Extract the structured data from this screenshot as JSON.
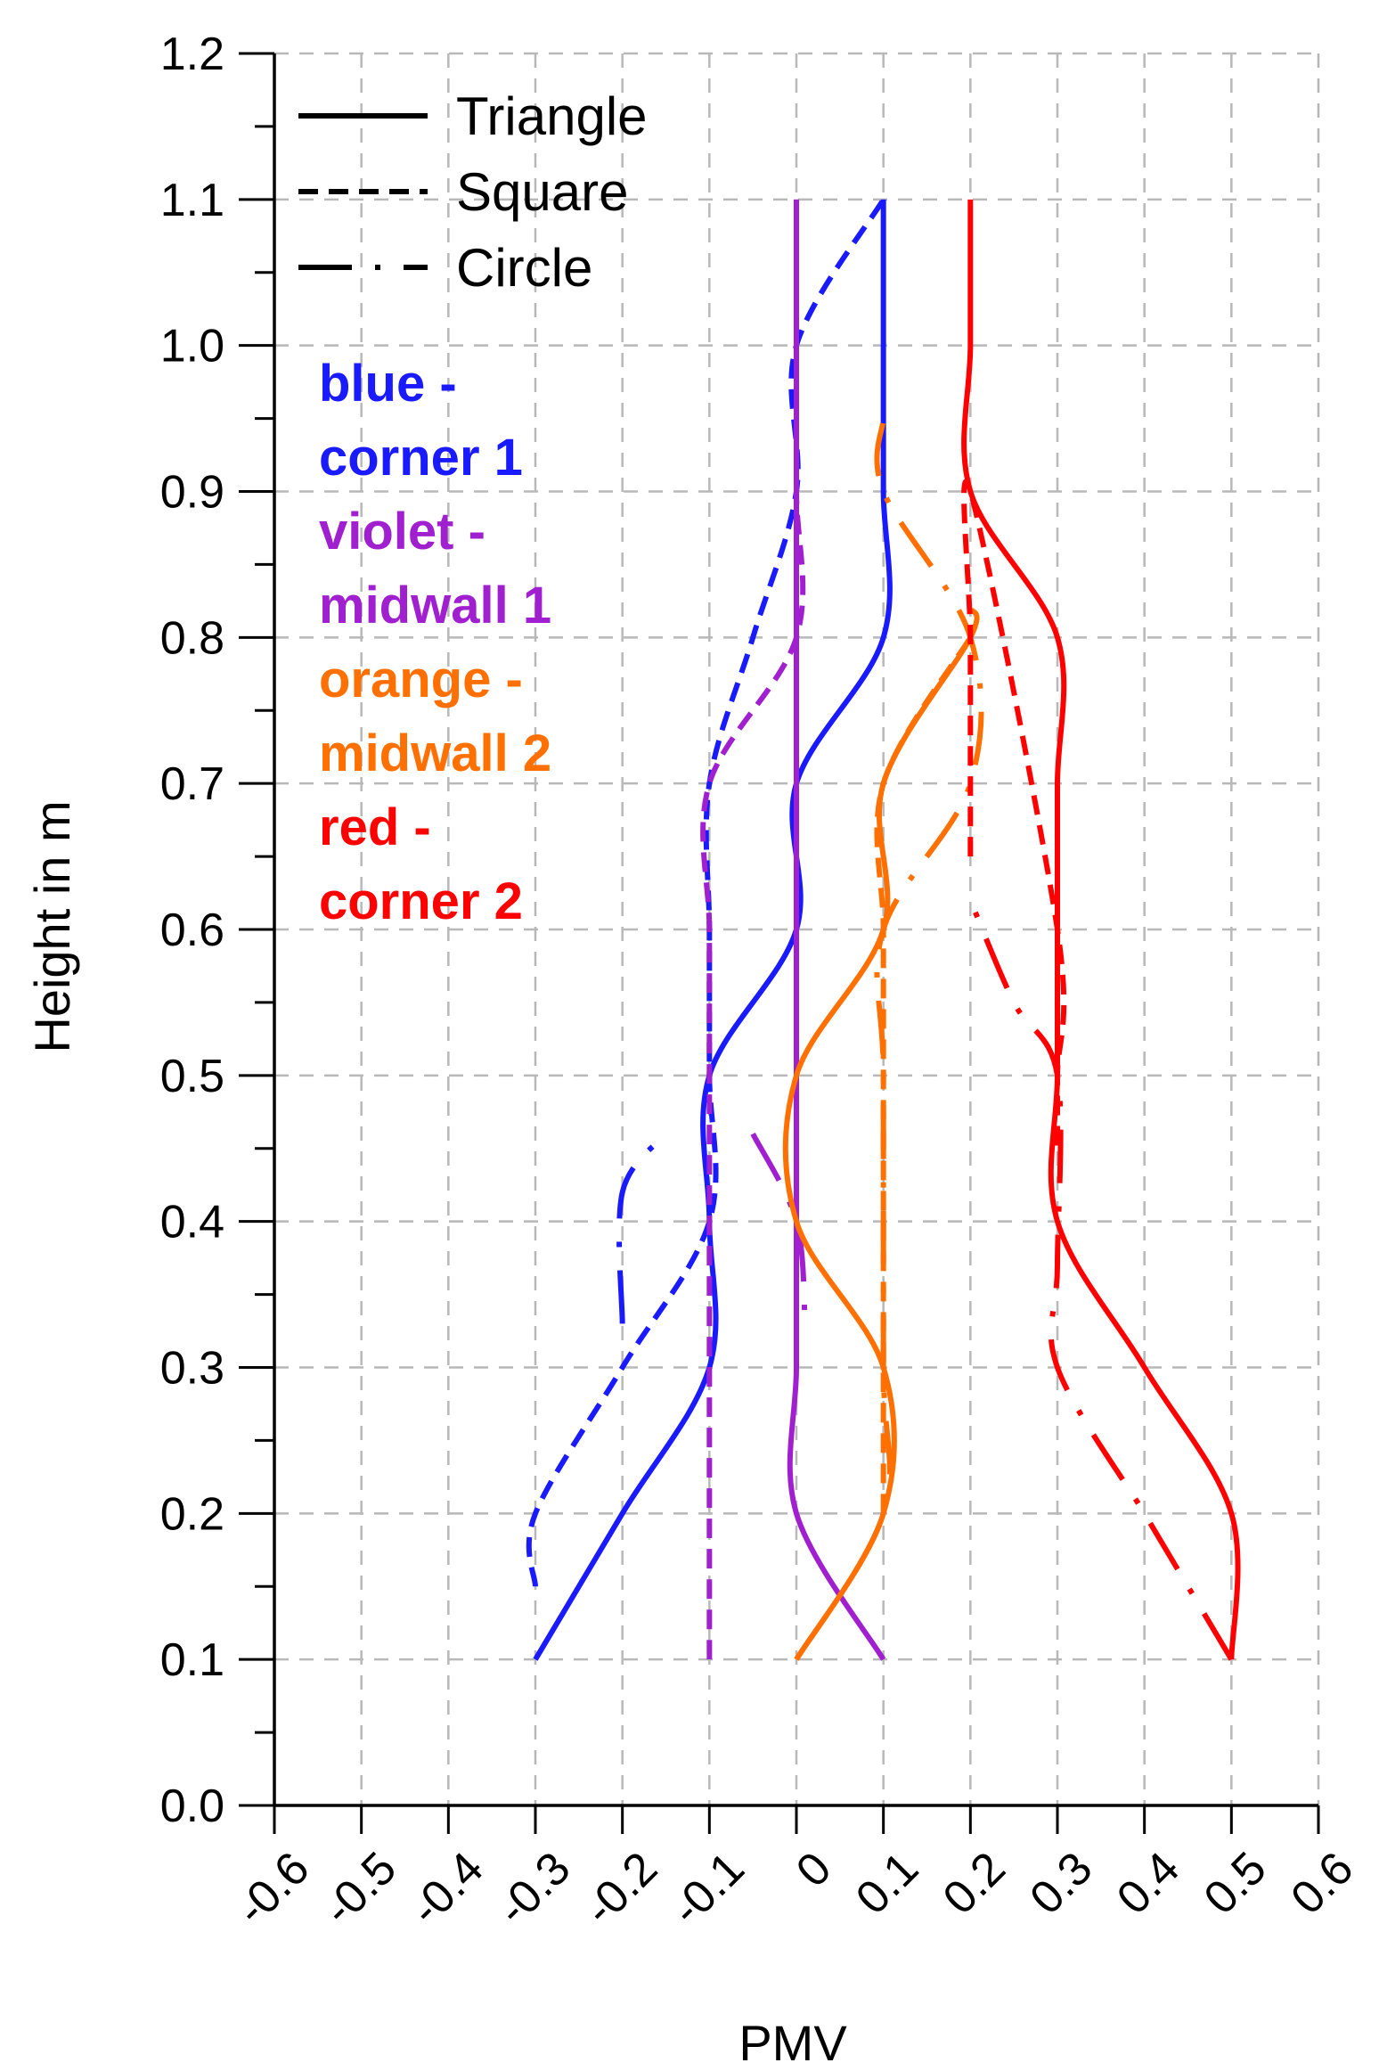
{
  "chart_data": {
    "type": "line",
    "xlabel": "PMV",
    "ylabel": "Height in m",
    "xlim": [
      -0.6,
      0.6
    ],
    "ylim": [
      0.0,
      1.2
    ],
    "grid": true,
    "x_ticks": [
      "-0.6",
      "-0.5",
      "-0.4",
      "-0.3",
      "-0.2",
      "-0.1",
      "0",
      "0.1",
      "0.2",
      "0.3",
      "0.4",
      "0.5",
      "0.6"
    ],
    "y_ticks": [
      "0.0",
      "0.1",
      "0.2",
      "0.3",
      "0.4",
      "0.5",
      "0.6",
      "0.7",
      "0.8",
      "0.9",
      "1.0",
      "1.1",
      "1.2"
    ],
    "legend": {
      "position": "top-left",
      "entries": [
        {
          "label": "Triangle",
          "style": "solid"
        },
        {
          "label": "Square",
          "style": "dashed"
        },
        {
          "label": "Circle",
          "style": "dash-dot"
        }
      ]
    },
    "color_notes": [
      {
        "text": "blue -",
        "color": "#1a1aff"
      },
      {
        "text": "corner 1",
        "color": "#1a1aff"
      },
      {
        "text": "violet -",
        "color": "#a020d0"
      },
      {
        "text": "midwall 1",
        "color": "#a020d0"
      },
      {
        "text": "orange -",
        "color": "#ff7000"
      },
      {
        "text": "midwall 2",
        "color": "#ff7000"
      },
      {
        "text": "red -",
        "color": "#ff0000"
      },
      {
        "text": "corner 2",
        "color": "#ff0000"
      }
    ],
    "series": [
      {
        "color": "#1a1aff",
        "style": "solid",
        "x": [
          -0.3,
          -0.2,
          -0.1,
          -0.1,
          -0.1,
          0.0,
          0.0,
          0.1,
          0.1,
          0.1,
          0.1
        ],
        "y": [
          0.1,
          0.2,
          0.3,
          0.4,
          0.5,
          0.6,
          0.7,
          0.8,
          0.9,
          1.0,
          1.1
        ]
      },
      {
        "color": "#1a1aff",
        "style": "dashed",
        "x": [
          -0.3,
          -0.3,
          -0.2,
          -0.1,
          -0.1,
          -0.1,
          -0.1,
          -0.05,
          0.0,
          0.0,
          0.1
        ],
        "y": [
          0.15,
          0.2,
          0.3,
          0.4,
          0.5,
          0.6,
          0.7,
          0.8,
          0.9,
          1.0,
          1.1
        ]
      },
      {
        "color": "#1a1aff",
        "style": "dash-dot",
        "x": [
          -0.2,
          -0.2,
          -0.15
        ],
        "y": [
          0.33,
          0.42,
          0.46
        ]
      },
      {
        "color": "#a020d0",
        "style": "solid",
        "x": [
          0.1,
          0.0,
          0.0,
          0.0,
          0.0,
          0.0,
          0.0,
          0.0,
          0.0,
          0.0,
          0.0
        ],
        "y": [
          0.1,
          0.2,
          0.3,
          0.4,
          0.5,
          0.6,
          0.7,
          0.8,
          0.9,
          1.0,
          1.1
        ]
      },
      {
        "color": "#a020d0",
        "style": "dashed",
        "x": [
          -0.1,
          -0.1,
          -0.1,
          -0.1,
          -0.1,
          -0.1,
          -0.1,
          0.0,
          0.0,
          0.0,
          0.0
        ],
        "y": [
          0.1,
          0.2,
          0.3,
          0.4,
          0.5,
          0.6,
          0.7,
          0.8,
          0.9,
          1.0,
          1.1
        ]
      },
      {
        "color": "#a020d0",
        "style": "dash-dot",
        "x": [
          -0.05,
          0.0,
          0.01
        ],
        "y": [
          0.46,
          0.4,
          0.33
        ]
      },
      {
        "color": "#ff7000",
        "style": "solid",
        "x": [
          0.0,
          0.1,
          0.1,
          0.0,
          0.0,
          0.1,
          0.1,
          0.2,
          0.2
        ],
        "y": [
          0.1,
          0.2,
          0.3,
          0.4,
          0.5,
          0.6,
          0.7,
          0.8,
          0.82
        ]
      },
      {
        "color": "#ff7000",
        "style": "dashed",
        "x": [
          0.1,
          0.1,
          0.1,
          0.1,
          0.1,
          0.1,
          0.2
        ],
        "y": [
          0.2,
          0.3,
          0.4,
          0.5,
          0.6,
          0.7,
          0.8
        ]
      },
      {
        "color": "#ff7000",
        "style": "dash-dot",
        "x": [
          0.0,
          0.1,
          0.1,
          0.1,
          0.1,
          0.2,
          0.2,
          0.1,
          0.1
        ],
        "y": [
          0.1,
          0.2,
          0.3,
          0.5,
          0.6,
          0.7,
          0.8,
          0.9,
          0.95
        ]
      },
      {
        "color": "#ff0000",
        "style": "solid",
        "x": [
          0.5,
          0.5,
          0.4,
          0.3,
          0.3,
          0.3,
          0.3,
          0.3,
          0.2,
          0.2,
          0.2
        ],
        "y": [
          0.1,
          0.2,
          0.3,
          0.4,
          0.5,
          0.6,
          0.7,
          0.8,
          0.9,
          1.0,
          1.1
        ]
      },
      {
        "color": "#ff0000",
        "style": "dashed",
        "x": [
          0.2,
          0.2,
          0.2,
          0.2,
          0.3,
          0.3,
          0.3
        ],
        "y": [
          0.65,
          0.7,
          0.8,
          0.9,
          0.6,
          0.5,
          0.45
        ]
      },
      {
        "color": "#ff0000",
        "style": "dash-dot",
        "x": [
          0.5,
          0.45,
          0.4,
          0.3,
          0.3,
          0.3,
          0.25,
          0.2
        ],
        "y": [
          0.1,
          0.15,
          0.2,
          0.3,
          0.37,
          0.5,
          0.55,
          0.62
        ]
      }
    ]
  }
}
